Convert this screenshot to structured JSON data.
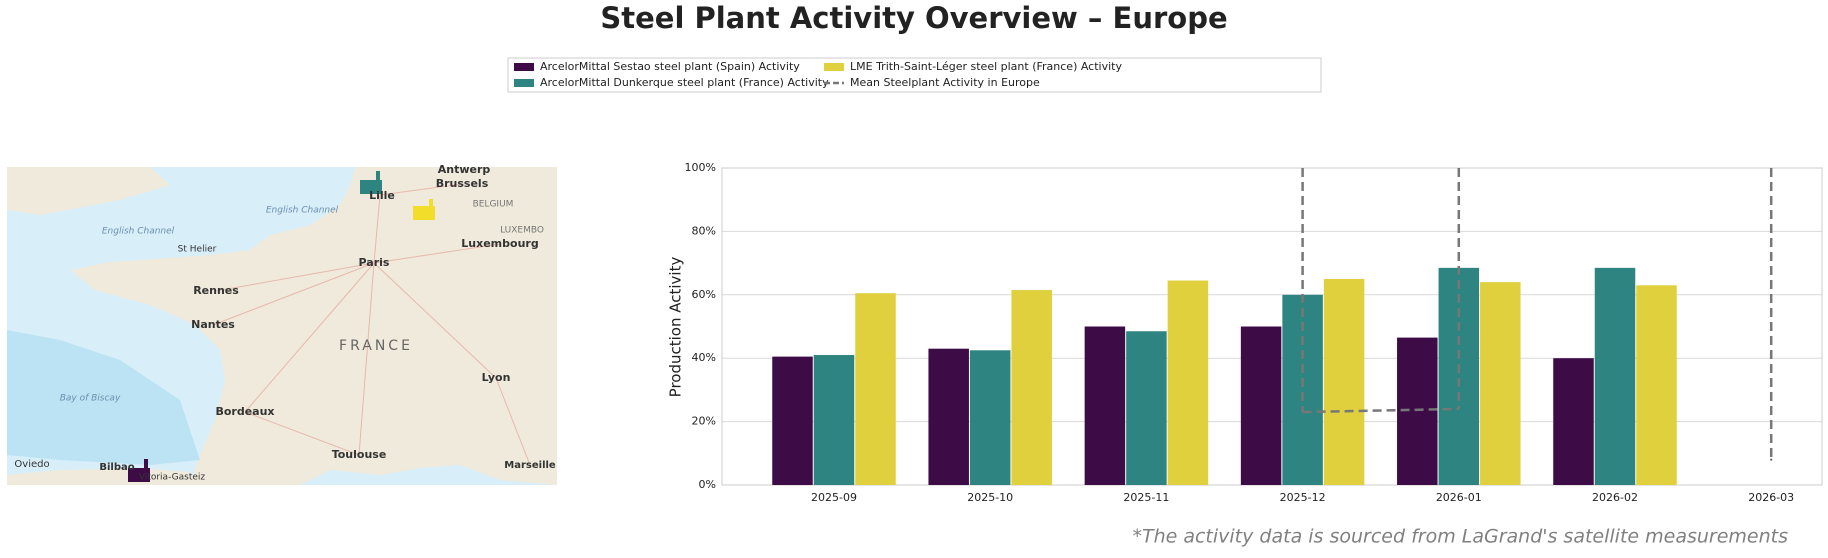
{
  "chart_data": {
    "type": "bar",
    "title": "Steel Plant Activity Overview – Europe",
    "y_label": "Production Activity",
    "source_note": "*The activity data is sourced from LaGrand's satellite measurements",
    "categories": [
      "2025-09",
      "2025-10",
      "2025-11",
      "2025-12",
      "2026-01",
      "2026-02",
      "2026-03"
    ],
    "series": [
      {
        "name": "ArcelorMittal Sestao steel plant (Spain) Activity",
        "color": "#3d0c46",
        "values": [
          40.5,
          43,
          50,
          50,
          46.5,
          40,
          null
        ]
      },
      {
        "name": "ArcelorMittal Dunkerque steel plant (France) Activity",
        "color": "#2d8480",
        "values": [
          41,
          42.5,
          48.5,
          60,
          68.5,
          68.5,
          null
        ]
      },
      {
        "name": "LME Trith-Saint-Léger steel plant (France) Activity",
        "color": "#e0d03d",
        "values": [
          60.5,
          61.5,
          64.5,
          65,
          64,
          63,
          null
        ]
      },
      {
        "name": "Mean Steelplant Activity in Europe",
        "color": "#777777",
        "type": "line",
        "linestyle": "dashed",
        "values": [
          null,
          null,
          null,
          23,
          24,
          null,
          8
        ]
      }
    ],
    "ylim": [
      0,
      100
    ],
    "yticks": [
      {
        "value": 0,
        "label": "0%"
      },
      {
        "value": 20,
        "label": "20%"
      },
      {
        "value": 40,
        "label": "40%"
      },
      {
        "value": 60,
        "label": "60%"
      },
      {
        "value": 80,
        "label": "80%"
      },
      {
        "value": 100,
        "label": "100%"
      }
    ],
    "grid": true,
    "legend": "top"
  },
  "map": {
    "labels": [
      "Antwerp",
      "Brussels",
      "BELGIUM",
      "Lille",
      "LUXEMBO",
      "Luxembourg",
      "English Channel",
      "English Channel",
      "St Helier",
      "Paris",
      "Rennes",
      "Nantes",
      "FRANCE",
      "Lyon",
      "Bay of Biscay",
      "Bordeaux",
      "Toulouse",
      "Marseille",
      "Oviedo",
      "Bilbao",
      "Vitoria-Gasteiz"
    ]
  }
}
